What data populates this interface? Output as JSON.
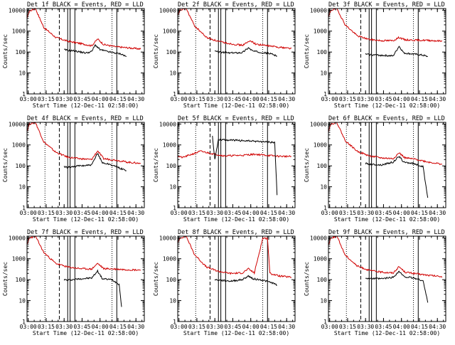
{
  "panel_titles": [
    "Det 1f BLACK = Events, RED = LLD",
    "Det 2f BLACK = Events, RED = LLD",
    "Det 3f BLACK = Events, RED = LLD",
    "Det 4f BLACK = Events, RED = LLD",
    "Det 5f BLACK = Events, RED = LLD",
    "Det 6f BLACK = Events, RED = LLD",
    "Det 7f BLACK = Events, RED = LLD",
    "Det 8f BLACK = Events, RED = LLD",
    "Det 9f BLACK = Events, RED = LLD"
  ],
  "chart_data": {
    "type": "line",
    "layout": "3x3 grid of panels",
    "xlabel": "Start Time (12-Dec-11 02:58:00)",
    "ylabel": "Counts/sec",
    "y_scale": "log",
    "ylim": [
      1,
      12000
    ],
    "y_ticks": [
      1,
      10,
      100,
      1000,
      10000
    ],
    "y_tick_labels": [
      "1",
      "10",
      "100",
      "1000",
      "10000"
    ],
    "xlim": [
      "02:59",
      "04:37"
    ],
    "x_ticks": [
      "03:00",
      "03:15",
      "03:30",
      "03:45",
      "04:00",
      "04:15",
      "04:30"
    ],
    "colors": {
      "events": "#000000",
      "lld": "#d00000"
    },
    "vertical_markers": {
      "dotted": [
        "03:14",
        "04:10"
      ],
      "dashed": [
        "03:26"
      ],
      "solid": [
        "03:33",
        "03:35",
        "03:39"
      ],
      "solid_late": [
        "04:14"
      ]
    },
    "panels": [
      {
        "name": "Det 1f",
        "lld": [
          [
            0,
            3000
          ],
          [
            3,
            9000
          ],
          [
            8,
            12000
          ],
          [
            15,
            1500
          ],
          [
            25,
            500
          ],
          [
            35,
            330
          ],
          [
            45,
            260
          ],
          [
            55,
            200
          ],
          [
            60,
            420
          ],
          [
            65,
            230
          ],
          [
            75,
            180
          ],
          [
            85,
            160
          ],
          [
            96,
            140
          ]
        ],
        "events": [
          [
            32,
            130
          ],
          [
            35,
            120
          ],
          [
            40,
            115
          ],
          [
            50,
            90
          ],
          [
            55,
            105
          ],
          [
            58,
            220
          ],
          [
            62,
            130
          ],
          [
            70,
            100
          ],
          [
            80,
            80
          ],
          [
            84,
            60
          ]
        ],
        "flare_at": 63
      },
      {
        "name": "Det 2f",
        "lld": [
          [
            0,
            4000
          ],
          [
            3,
            10000
          ],
          [
            8,
            12000
          ],
          [
            15,
            1800
          ],
          [
            25,
            500
          ],
          [
            35,
            320
          ],
          [
            45,
            250
          ],
          [
            55,
            210
          ],
          [
            62,
            350
          ],
          [
            66,
            240
          ],
          [
            76,
            200
          ],
          [
            86,
            170
          ],
          [
            96,
            150
          ]
        ],
        "events": [
          [
            32,
            110
          ],
          [
            35,
            100
          ],
          [
            45,
            90
          ],
          [
            55,
            95
          ],
          [
            60,
            160
          ],
          [
            64,
            110
          ],
          [
            72,
            95
          ],
          [
            80,
            80
          ],
          [
            84,
            65
          ]
        ],
        "flare_at": 62
      },
      {
        "name": "Det 3f",
        "lld": [
          [
            0,
            3000
          ],
          [
            3,
            10000
          ],
          [
            8,
            12000
          ],
          [
            15,
            2000
          ],
          [
            25,
            600
          ],
          [
            35,
            400
          ],
          [
            45,
            350
          ],
          [
            55,
            350
          ],
          [
            60,
            500
          ],
          [
            65,
            380
          ],
          [
            75,
            370
          ],
          [
            86,
            360
          ],
          [
            96,
            330
          ]
        ],
        "events": [
          [
            32,
            80
          ],
          [
            35,
            75
          ],
          [
            45,
            70
          ],
          [
            55,
            65
          ],
          [
            60,
            190
          ],
          [
            64,
            90
          ],
          [
            72,
            80
          ],
          [
            80,
            70
          ],
          [
            84,
            60
          ]
        ],
        "flare_at": 61
      },
      {
        "name": "Det 4f",
        "lld": [
          [
            0,
            3000
          ],
          [
            3,
            10000
          ],
          [
            8,
            12000
          ],
          [
            15,
            1400
          ],
          [
            25,
            450
          ],
          [
            35,
            260
          ],
          [
            45,
            220
          ],
          [
            55,
            200
          ],
          [
            60,
            520
          ],
          [
            65,
            220
          ],
          [
            75,
            190
          ],
          [
            85,
            150
          ],
          [
            96,
            130
          ]
        ],
        "events": [
          [
            32,
            90
          ],
          [
            35,
            85
          ],
          [
            45,
            100
          ],
          [
            55,
            110
          ],
          [
            60,
            400
          ],
          [
            64,
            140
          ],
          [
            70,
            120
          ],
          [
            78,
            80
          ],
          [
            84,
            60
          ]
        ],
        "flare_at": 62
      },
      {
        "name": "Det 5f",
        "lld": [
          [
            0,
            300
          ],
          [
            5,
            250
          ],
          [
            20,
            500
          ],
          [
            30,
            380
          ],
          [
            40,
            300
          ],
          [
            55,
            320
          ],
          [
            65,
            360
          ],
          [
            75,
            320
          ],
          [
            85,
            290
          ],
          [
            96,
            280
          ]
        ],
        "events": [
          [
            30,
            2500
          ],
          [
            32,
            200
          ],
          [
            35,
            1800
          ],
          [
            45,
            1700
          ],
          [
            55,
            1600
          ],
          [
            65,
            1500
          ],
          [
            75,
            1400
          ],
          [
            82,
            1300
          ],
          [
            84,
            4
          ]
        ],
        "flare_at": 0
      },
      {
        "name": "Det 6f",
        "lld": [
          [
            0,
            3000
          ],
          [
            3,
            10000
          ],
          [
            8,
            12000
          ],
          [
            15,
            1600
          ],
          [
            25,
            500
          ],
          [
            35,
            300
          ],
          [
            45,
            240
          ],
          [
            55,
            220
          ],
          [
            60,
            420
          ],
          [
            65,
            240
          ],
          [
            75,
            200
          ],
          [
            85,
            150
          ],
          [
            96,
            120
          ]
        ],
        "events": [
          [
            32,
            130
          ],
          [
            35,
            120
          ],
          [
            45,
            110
          ],
          [
            55,
            150
          ],
          [
            60,
            280
          ],
          [
            64,
            150
          ],
          [
            72,
            130
          ],
          [
            80,
            90
          ],
          [
            84,
            3
          ]
        ],
        "flare_at": 61
      },
      {
        "name": "Det 7f",
        "lld": [
          [
            0,
            3000
          ],
          [
            3,
            10000
          ],
          [
            8,
            12000
          ],
          [
            15,
            2000
          ],
          [
            25,
            600
          ],
          [
            35,
            400
          ],
          [
            45,
            340
          ],
          [
            55,
            320
          ],
          [
            60,
            600
          ],
          [
            65,
            340
          ],
          [
            75,
            320
          ],
          [
            85,
            300
          ],
          [
            96,
            290
          ]
        ],
        "events": [
          [
            32,
            100
          ],
          [
            35,
            95
          ],
          [
            45,
            110
          ],
          [
            55,
            120
          ],
          [
            60,
            260
          ],
          [
            64,
            110
          ],
          [
            72,
            100
          ],
          [
            78,
            60
          ],
          [
            80,
            5
          ]
        ],
        "flare_at": 61
      },
      {
        "name": "Det 8f",
        "lld": [
          [
            0,
            4000
          ],
          [
            3,
            10000
          ],
          [
            8,
            12000
          ],
          [
            15,
            1600
          ],
          [
            25,
            400
          ],
          [
            35,
            250
          ],
          [
            45,
            200
          ],
          [
            55,
            210
          ],
          [
            60,
            330
          ],
          [
            65,
            210
          ],
          [
            72,
            9500
          ],
          [
            76,
            9500
          ],
          [
            78,
            200
          ],
          [
            86,
            150
          ],
          [
            96,
            130
          ]
        ],
        "events": [
          [
            32,
            100
          ],
          [
            35,
            95
          ],
          [
            45,
            85
          ],
          [
            55,
            100
          ],
          [
            60,
            150
          ],
          [
            64,
            110
          ],
          [
            72,
            95
          ],
          [
            80,
            70
          ],
          [
            84,
            55
          ]
        ],
        "flare_at": 61
      },
      {
        "name": "Det 9f",
        "lld": [
          [
            0,
            3000
          ],
          [
            3,
            10000
          ],
          [
            8,
            12000
          ],
          [
            15,
            1500
          ],
          [
            25,
            450
          ],
          [
            35,
            280
          ],
          [
            45,
            230
          ],
          [
            55,
            210
          ],
          [
            60,
            420
          ],
          [
            65,
            230
          ],
          [
            75,
            190
          ],
          [
            85,
            160
          ],
          [
            96,
            140
          ]
        ],
        "events": [
          [
            32,
            120
          ],
          [
            35,
            115
          ],
          [
            45,
            110
          ],
          [
            55,
            130
          ],
          [
            60,
            250
          ],
          [
            64,
            140
          ],
          [
            72,
            120
          ],
          [
            80,
            90
          ],
          [
            84,
            8
          ]
        ],
        "flare_at": 61
      }
    ]
  }
}
